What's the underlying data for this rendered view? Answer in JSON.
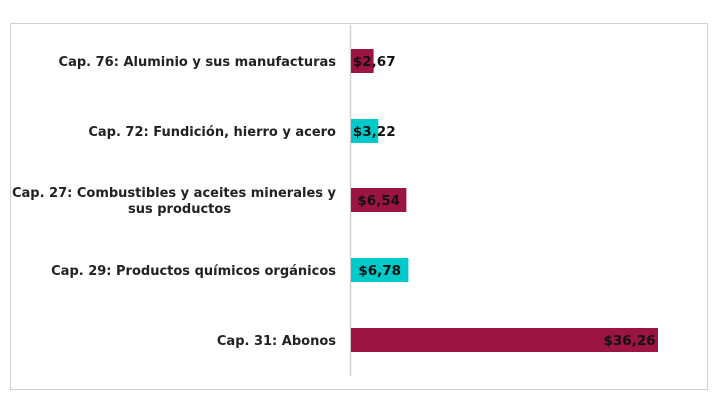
{
  "chart_data": {
    "type": "bar",
    "orientation": "horizontal",
    "categories": [
      "Cap. 76: Aluminio y sus manufacturas",
      "Cap. 72: Fundición, hierro y acero",
      "Cap. 27: Combustibles y aceites minerales y sus productos",
      "Cap. 29: Productos químicos orgánicos",
      "Cap. 31: Abonos"
    ],
    "category_lines": [
      [
        "Cap. 76: Aluminio y sus manufacturas"
      ],
      [
        "Cap. 72: Fundición, hierro y acero"
      ],
      [
        "Cap. 27: Combustibles y aceites minerales y",
        "sus productos"
      ],
      [
        "Cap. 29: Productos químicos orgánicos"
      ],
      [
        "Cap. 31: Abonos"
      ]
    ],
    "values": [
      2.67,
      3.22,
      6.54,
      6.78,
      36.26
    ],
    "data_labels": [
      "$2,67",
      "$3,22",
      "$6,54",
      "$6,78",
      "$36,26"
    ],
    "colors": [
      "#9b1444",
      "#00c9c9",
      "#9b1444",
      "#00c9c9",
      "#9b1444"
    ],
    "xlim": [
      0,
      40
    ],
    "grid": false,
    "title": "",
    "xlabel": "",
    "ylabel": ""
  }
}
